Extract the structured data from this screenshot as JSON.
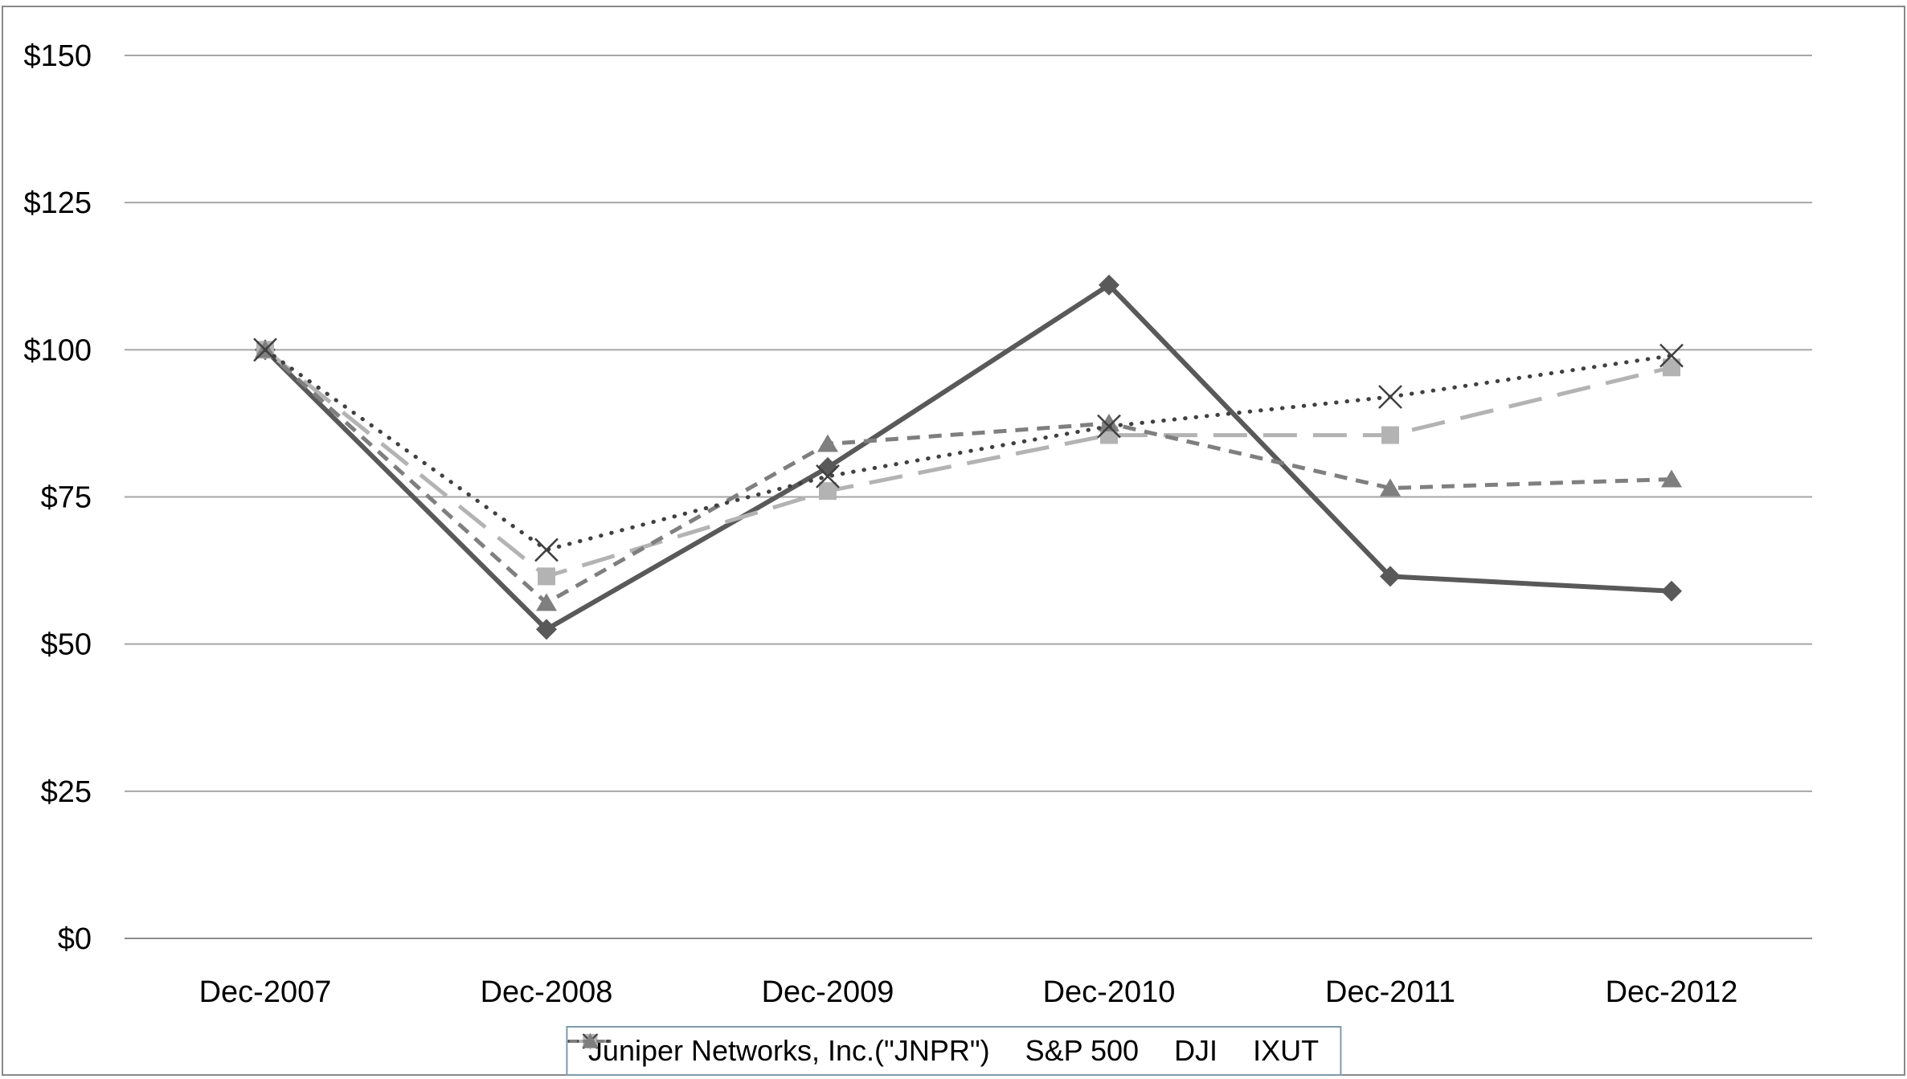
{
  "chart_data": {
    "type": "line",
    "title": "",
    "xlabel": "",
    "ylabel": "",
    "categories": [
      "Dec-2007",
      "Dec-2008",
      "Dec-2009",
      "Dec-2010",
      "Dec-2011",
      "Dec-2012"
    ],
    "series": [
      {
        "name": "Juniper Networks, Inc.(\"JNPR\")",
        "values": [
          100,
          52.5,
          80,
          111,
          61.5,
          59
        ],
        "color": "#595959",
        "marker": "diamond",
        "dash": "solid"
      },
      {
        "name": "S&P 500",
        "values": [
          100,
          61.5,
          76,
          85.5,
          85.5,
          97
        ],
        "color": "#b3b3b3",
        "marker": "square",
        "dash": "longdash"
      },
      {
        "name": "DJI",
        "values": [
          100,
          66,
          78.5,
          87,
          92,
          99
        ],
        "color": "#404040",
        "marker": "x",
        "dash": "dot"
      },
      {
        "name": "IXUT",
        "values": [
          100,
          57,
          84,
          87.5,
          76.5,
          78
        ],
        "color": "#7f7f7f",
        "marker": "triangle",
        "dash": "dash"
      }
    ],
    "ylim": [
      0,
      150
    ],
    "y_ticks": [
      0,
      25,
      50,
      75,
      100,
      125,
      150
    ],
    "y_tick_labels": [
      "$0",
      "$25",
      "$50",
      "$75",
      "$100",
      "$125",
      "$150"
    ],
    "grid": true,
    "legend_position": "bottom",
    "colors": {
      "gridline": "#a6a6a6",
      "axis_line": "#8c8c8c",
      "tick_text": "#000000",
      "frame_border": "#898989",
      "legend_border": "#7f9aac"
    }
  }
}
